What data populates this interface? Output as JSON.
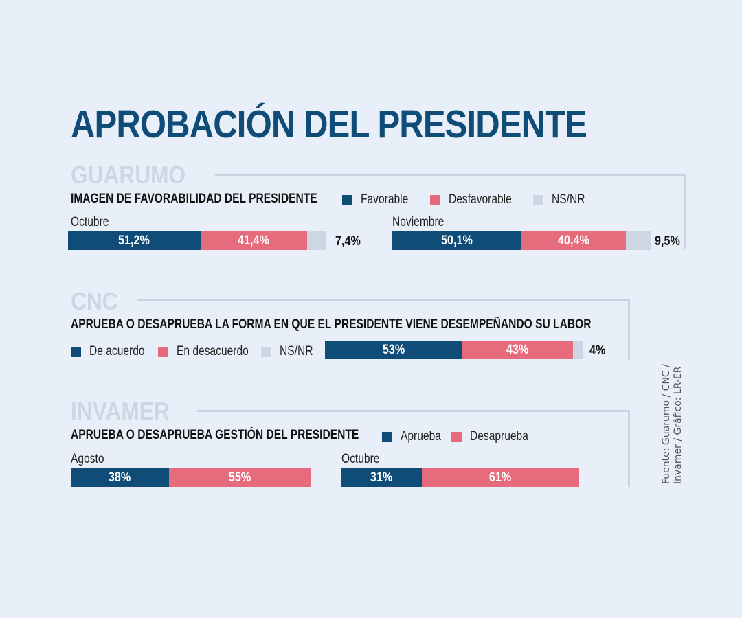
{
  "title": "APROBACIÓN DEL PRESIDENTE",
  "colors": {
    "background": "#e9eff8",
    "primary": "#0f4c78",
    "negative": "#e66b7c",
    "neutral": "#cdd6e5",
    "source_name": "#cdd6e5"
  },
  "footnote": {
    "line1": "Fuente: Guarumo / CNC /",
    "line2": "Invamer / Gráfico: LR-ER"
  },
  "chart_data": [
    {
      "type": "bar",
      "orientation": "horizontal-stacked",
      "source": "GUARUMO",
      "title": "IMAGEN DE FAVORABILIDAD DEL PRESIDENTE",
      "legend": [
        "Favorable",
        "Desfavorable",
        "NS/NR"
      ],
      "categories": [
        "Octubre",
        "Noviembre"
      ],
      "series": [
        {
          "name": "Favorable",
          "values": [
            51.2,
            50.1
          ],
          "labels": [
            "51,2%",
            "50,1%"
          ]
        },
        {
          "name": "Desfavorable",
          "values": [
            41.4,
            40.4
          ],
          "labels": [
            "41,4%",
            "40,4%"
          ]
        },
        {
          "name": "NS/NR",
          "values": [
            7.4,
            9.5
          ],
          "labels": [
            "7,4%",
            "9,5%"
          ]
        }
      ],
      "unit": "%"
    },
    {
      "type": "bar",
      "orientation": "horizontal-stacked",
      "source": "CNC",
      "title": "APRUEBA O DESAPRUEBA LA FORMA EN QUE EL PRESIDENTE VIENE DESEMPEÑANDO SU LABOR",
      "legend": [
        "De acuerdo",
        "En desacuerdo",
        "NS/NR"
      ],
      "categories": [
        ""
      ],
      "series": [
        {
          "name": "De acuerdo",
          "values": [
            53
          ],
          "labels": [
            "53%"
          ]
        },
        {
          "name": "En desacuerdo",
          "values": [
            43
          ],
          "labels": [
            "43%"
          ]
        },
        {
          "name": "NS/NR",
          "values": [
            4
          ],
          "labels": [
            "4%"
          ]
        }
      ],
      "unit": "%"
    },
    {
      "type": "bar",
      "orientation": "horizontal-stacked",
      "source": "INVAMER",
      "title": "APRUEBA O DESAPRUEBA GESTIÓN DEL PRESIDENTE",
      "legend": [
        "Aprueba",
        "Desaprueba"
      ],
      "categories": [
        "Agosto",
        "Octubre"
      ],
      "series": [
        {
          "name": "Aprueba",
          "values": [
            38,
            31
          ],
          "labels": [
            "38%",
            "31%"
          ]
        },
        {
          "name": "Desaprueba",
          "values": [
            55,
            61
          ],
          "labels": [
            "55%",
            "61%"
          ]
        }
      ],
      "unit": "%"
    }
  ]
}
